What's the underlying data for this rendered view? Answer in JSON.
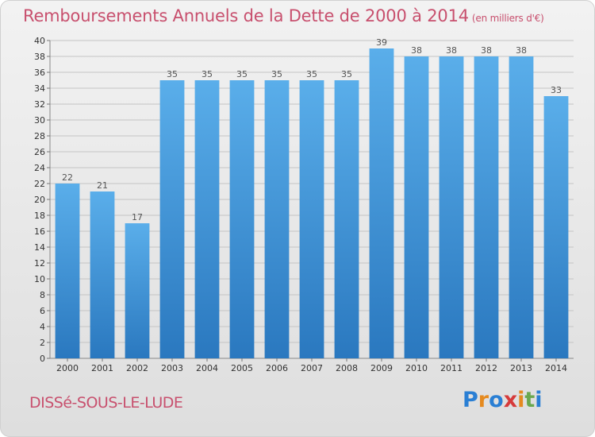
{
  "header": {
    "title": "Remboursements Annuels de la Dette de 2000 à 2014",
    "unit": "(en milliers d'€)"
  },
  "footer": {
    "commune": "DISSé-SOUS-LE-LUDE",
    "logo_letters": [
      {
        "ch": "P",
        "color": "#2a7fd4"
      },
      {
        "ch": "r",
        "color": "#e58a1f"
      },
      {
        "ch": "o",
        "color": "#2a7fd4"
      },
      {
        "ch": "x",
        "color": "#d63b3b"
      },
      {
        "ch": "i",
        "color": "#e58a1f"
      },
      {
        "ch": "t",
        "color": "#6aa84f"
      },
      {
        "ch": "i",
        "color": "#2a7fd4"
      }
    ]
  },
  "colors": {
    "bar_top": "#5aaeea",
    "bar_bottom": "#2a78bf",
    "title": "#c8506e",
    "grid": "#c4c4c4"
  },
  "chart_data": {
    "type": "bar",
    "title": "Remboursements Annuels de la Dette de 2000 à 2014",
    "subtitle": "(en milliers d'€)",
    "xlabel": "",
    "ylabel": "",
    "categories": [
      "2000",
      "2001",
      "2002",
      "2003",
      "2004",
      "2005",
      "2006",
      "2007",
      "2008",
      "2009",
      "2010",
      "2011",
      "2012",
      "2013",
      "2014"
    ],
    "values": [
      22,
      21,
      17,
      35,
      35,
      35,
      35,
      35,
      35,
      39,
      38,
      38,
      38,
      38,
      33
    ],
    "ylim": [
      0,
      40
    ],
    "ytick_step": 2,
    "grid": true,
    "legend": "none"
  }
}
